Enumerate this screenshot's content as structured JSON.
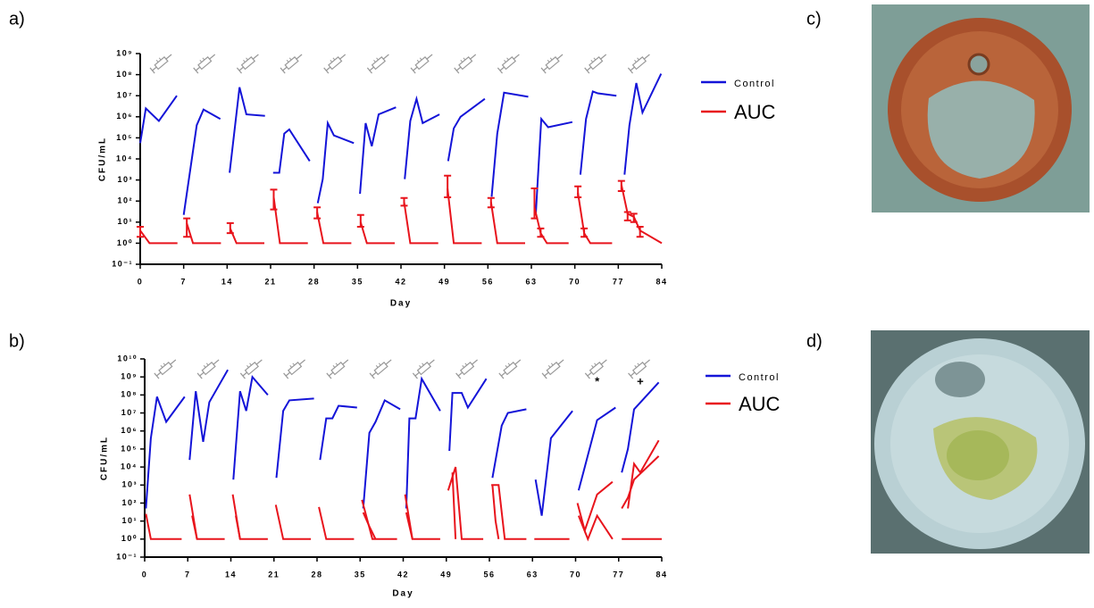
{
  "panel_labels": [
    "a)",
    "b)",
    "c)",
    "d)"
  ],
  "chart_data": [
    {
      "type": "line",
      "log_y": true,
      "x_label": "Day",
      "y_label": "CFU/mL",
      "xlim": [
        0,
        84
      ],
      "xticks": [
        0,
        7,
        14,
        21,
        28,
        35,
        42,
        49,
        56,
        63,
        70,
        77,
        84
      ],
      "ylim": [
        0.1,
        1000000000
      ],
      "yticks": [
        {
          "value": 0.1,
          "label": "10⁻¹"
        },
        {
          "value": 1,
          "label": "10⁰"
        },
        {
          "value": 10,
          "label": "10¹"
        },
        {
          "value": 100,
          "label": "10²"
        },
        {
          "value": 1000,
          "label": "10³"
        },
        {
          "value": 10000,
          "label": "10⁴"
        },
        {
          "value": 100000,
          "label": "10⁵"
        },
        {
          "value": 1000000,
          "label": "10⁶"
        },
        {
          "value": 10000000,
          "label": "10⁷"
        },
        {
          "value": 100000000,
          "label": "10⁸"
        },
        {
          "value": 1000000000,
          "label": "10⁹"
        }
      ],
      "series": [
        {
          "name": "Control",
          "color": "#1414d8",
          "x": [
            0,
            0.9,
            3,
            5.9,
            null,
            7,
            9.1,
            10.2,
            12.9,
            null,
            14.4,
            16,
            17.1,
            20.1,
            null,
            21.4,
            22.4,
            23.2,
            24,
            27.3,
            null,
            28.6,
            29.4,
            30.2,
            31.2,
            34.4,
            null,
            35.4,
            36.3,
            37.3,
            38.4,
            41.2,
            null,
            42.6,
            43.5,
            44.5,
            45.5,
            48.2,
            null,
            49.6,
            50.5,
            51.6,
            55.5,
            null,
            56.6,
            57.5,
            58.6,
            62.5,
            null,
            63.7,
            64.6,
            65.7,
            69.6,
            null,
            70.9,
            71.8,
            72.9,
            73.7,
            76.7,
            null,
            78,
            78.8,
            79.9,
            80.9,
            83.9
          ],
          "values": [
            56000,
            2500000,
            630000,
            10000000,
            null,
            22,
            400000,
            2200000,
            790000,
            null,
            2200,
            25000000,
            1300000,
            1100000,
            null,
            2200,
            2200,
            160000,
            250000,
            7900,
            null,
            79,
            1100,
            500000,
            130000,
            56000,
            null,
            220,
            500000,
            40000,
            1300000,
            2800000,
            null,
            1100,
            630000,
            7100000,
            500000,
            1300000,
            null,
            7900,
            280000,
            1000000,
            7100000,
            null,
            160,
            160000,
            14000000,
            8900000,
            null,
            22,
            790000,
            320000,
            560000,
            null,
            1800,
            790000,
            16000000,
            13000000,
            10000000,
            null,
            1800,
            400000,
            40000000,
            1600000,
            110000000
          ]
        },
        {
          "name": "AUC",
          "color": "#e8141c",
          "x": [
            0,
            1.5,
            6,
            null,
            7.5,
            8.5,
            13,
            null,
            14.5,
            15.5,
            20,
            null,
            21.5,
            22.5,
            27,
            null,
            28.5,
            29.5,
            34,
            null,
            35.5,
            36.5,
            41,
            null,
            42.5,
            43.5,
            48,
            null,
            49.5,
            50.5,
            55,
            null,
            56.5,
            57.5,
            62,
            null,
            63.5,
            64.5,
            65.5,
            69,
            null,
            70.5,
            71.5,
            72.5,
            76,
            null,
            77.5,
            78.5,
            79.5,
            80.5,
            84
          ],
          "values": [
            4,
            1,
            1,
            null,
            9,
            1,
            1,
            null,
            5,
            1,
            1,
            null,
            150,
            1,
            1,
            null,
            30,
            1,
            1,
            null,
            10,
            1,
            1,
            null,
            90,
            1,
            1,
            null,
            400,
            1,
            1,
            null,
            90,
            1,
            1,
            null,
            50,
            3,
            1,
            1,
            null,
            250,
            3,
            1,
            1,
            null,
            600,
            25,
            18,
            4,
            1
          ],
          "lower": [
            2,
            null,
            null,
            null,
            2,
            null,
            null,
            null,
            3,
            null,
            null,
            null,
            40,
            null,
            null,
            null,
            15,
            null,
            null,
            null,
            6,
            null,
            null,
            null,
            60,
            null,
            null,
            null,
            150,
            null,
            null,
            null,
            50,
            null,
            null,
            null,
            15,
            2,
            null,
            null,
            null,
            150,
            2,
            null,
            null,
            null,
            300,
            12,
            10,
            2,
            null
          ],
          "upper": [
            6,
            null,
            null,
            null,
            15,
            null,
            null,
            null,
            9,
            null,
            null,
            null,
            350,
            null,
            null,
            null,
            50,
            null,
            null,
            null,
            22,
            null,
            null,
            null,
            140,
            null,
            null,
            null,
            1600,
            null,
            null,
            null,
            140,
            null,
            null,
            null,
            400,
            5,
            null,
            null,
            null,
            500,
            5,
            null,
            null,
            null,
            900,
            30,
            25,
            6,
            null
          ]
        }
      ]
    },
    {
      "type": "line",
      "log_y": true,
      "x_label": "Day",
      "y_label": "CFU/mL",
      "annotations": [
        "*",
        "+"
      ],
      "xlim": [
        0,
        84
      ],
      "xticks": [
        0,
        7,
        14,
        21,
        28,
        35,
        42,
        49,
        56,
        63,
        70,
        77,
        84
      ],
      "ylim": [
        0.1,
        10000000000
      ],
      "yticks": [
        {
          "value": 0.1,
          "label": "10⁻¹"
        },
        {
          "value": 1,
          "label": "10⁰"
        },
        {
          "value": 10,
          "label": "10¹"
        },
        {
          "value": 100,
          "label": "10²"
        },
        {
          "value": 1000,
          "label": "10³"
        },
        {
          "value": 10000,
          "label": "10⁴"
        },
        {
          "value": 100000,
          "label": "10⁵"
        },
        {
          "value": 1000000,
          "label": "10⁶"
        },
        {
          "value": 10000000,
          "label": "10⁷"
        },
        {
          "value": 100000000,
          "label": "10⁸"
        },
        {
          "value": 1000000000,
          "label": "10⁹"
        },
        {
          "value": 10000000000,
          "label": "10¹⁰"
        }
      ],
      "series": [
        {
          "name": "Control",
          "color": "#1414d8",
          "x": [
            0.2,
            1,
            2,
            3.5,
            6.5,
            null,
            7.3,
            8.3,
            9.5,
            10.5,
            13.5,
            null,
            14.4,
            15.5,
            16.5,
            17.5,
            20,
            null,
            21.4,
            22.5,
            23.5,
            27.5,
            null,
            28.5,
            29.5,
            30.5,
            31.5,
            34.5,
            null,
            35.5,
            36.5,
            37.5,
            39,
            41.5,
            null,
            42.5,
            43,
            44,
            45,
            48,
            null,
            49.5,
            50,
            51.5,
            52.5,
            55.5,
            null,
            56.5,
            58,
            59,
            62,
            null,
            63.5,
            64.5,
            66,
            69.5,
            null,
            70.5,
            71.5,
            73.5,
            76.5,
            null,
            77.5,
            78.5,
            79.5,
            83.5
          ],
          "values": [
            50,
            400000,
            79000000,
            3200000,
            79000000,
            null,
            25000,
            160000000,
            250000,
            40000000,
            2500000000,
            null,
            2000,
            160000000,
            13000000,
            1000000000,
            100000000,
            null,
            2500,
            13000000,
            50000000,
            63000000,
            null,
            25000,
            5000000,
            5000000,
            25000000,
            20000000,
            null,
            50,
            790000,
            3200000,
            50000000,
            16000000,
            null,
            50,
            5000000,
            5000000,
            790000000,
            13000000,
            null,
            79000,
            130000000,
            130000000,
            20000000,
            790000000,
            null,
            2500,
            2000000,
            10000000,
            16000000,
            null,
            2000,
            20,
            400000,
            13000000,
            null,
            500,
            10000,
            4000000,
            20000000,
            null,
            5000,
            100000,
            16000000,
            500000000
          ]
        },
        {
          "name": "AUC",
          "color": "#e8141c",
          "x": [
            0.2,
            1,
            6,
            null,
            7.3,
            8.5,
            13,
            null,
            14.3,
            15.5,
            20,
            null,
            21.3,
            22.5,
            27,
            null,
            28.3,
            29.5,
            34,
            null,
            35.3,
            37,
            41,
            null,
            42.3,
            43.5,
            48,
            null,
            49.3,
            50.5,
            51.5,
            55,
            null,
            56.3,
            57.5,
            58.5,
            62,
            null,
            63.3,
            69,
            null,
            70.3,
            71.5,
            73.5,
            76,
            null,
            77.5,
            78.5,
            79.5,
            83.5
          ],
          "values": [
            25,
            1,
            1,
            null,
            300,
            1,
            1,
            null,
            300,
            1,
            1,
            null,
            80,
            1,
            1,
            null,
            60,
            1,
            1,
            null,
            150,
            1,
            1,
            null,
            300,
            1,
            1,
            null,
            500,
            10000,
            1,
            1,
            null,
            1000,
            1000,
            1,
            1,
            null,
            1,
            1,
            null,
            100,
            3,
            300,
            1500,
            null,
            50,
            200,
            2000,
            40000
          ]
        },
        {
          "color": "#e8141c",
          "x": [
            7.7,
            8.5,
            null,
            14.8,
            15.5,
            null,
            35.5,
            36.5,
            37.5,
            null,
            42.5,
            43.5,
            null,
            50,
            50.5,
            null,
            56.5,
            57,
            57.5,
            null,
            70.5,
            72,
            73.5,
            76,
            null,
            77.5,
            84,
            null,
            78.5,
            79.5,
            80.5,
            83.5
          ],
          "values": [
            20,
            1,
            null,
            20,
            1,
            null,
            30,
            5,
            1,
            null,
            30,
            1,
            null,
            5000,
            1,
            null,
            1000,
            10,
            1,
            null,
            20,
            1,
            20,
            1,
            null,
            1,
            1,
            null,
            50,
            15000,
            5000,
            300000
          ]
        }
      ]
    }
  ]
}
